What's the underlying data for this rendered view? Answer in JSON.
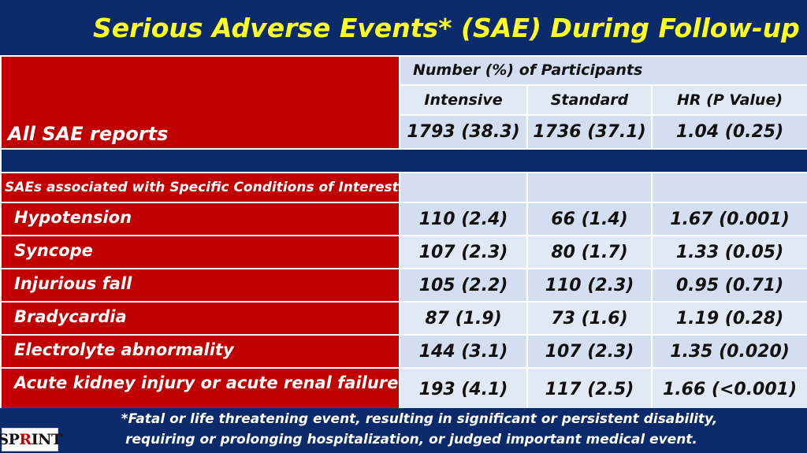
{
  "title": "Serious Adverse Events* (SAE) During Follow-up",
  "header": {
    "group_label": "Number (%) of Participants",
    "col_intensive": "Intensive",
    "col_standard": "Standard",
    "col_hr": "HR (P Value)"
  },
  "all_sae": {
    "label": "All SAE reports",
    "intensive": "1793 (38.3)",
    "standard": "1736 (37.1)",
    "hr": "1.04 (0.25)"
  },
  "section_label": "SAEs associated with Specific Conditions of Interest",
  "rows": [
    {
      "label": "Hypotension",
      "intensive": "110 (2.4)",
      "standard": "66 (1.4)",
      "hr": "1.67 (0.001)"
    },
    {
      "label": "Syncope",
      "intensive": "107 (2.3)",
      "standard": "80 (1.7)",
      "hr": "1.33 (0.05)"
    },
    {
      "label": "Injurious fall",
      "intensive": "105 (2.2)",
      "standard": "110 (2.3)",
      "hr": "0.95 (0.71)"
    },
    {
      "label": "Bradycardia",
      "intensive": "87 (1.9)",
      "standard": "73 (1.6)",
      "hr": "1.19 (0.28)"
    },
    {
      "label": "Electrolyte abnormality",
      "intensive": "144 (3.1)",
      "standard": "107 (2.3)",
      "hr": "1.35 (0.020)"
    },
    {
      "label": "Acute kidney injury or acute renal failure",
      "intensive": "193 (4.1)",
      "standard": "117 (2.5)",
      "hr": "1.66 (<0.001)"
    }
  ],
  "footnote": {
    "line1": "*Fatal or life threatening event, resulting in significant or persistent disability,",
    "line2": "requiring or prolonging hospitalization, or judged important medical event."
  },
  "logo": {
    "text_a": "SP",
    "text_r": "R",
    "text_b": "INT"
  },
  "colors": {
    "navy": "#0b2a6b",
    "red": "#c00000",
    "title_yellow": "#ffff22",
    "light_blue": "#d3dff0"
  }
}
